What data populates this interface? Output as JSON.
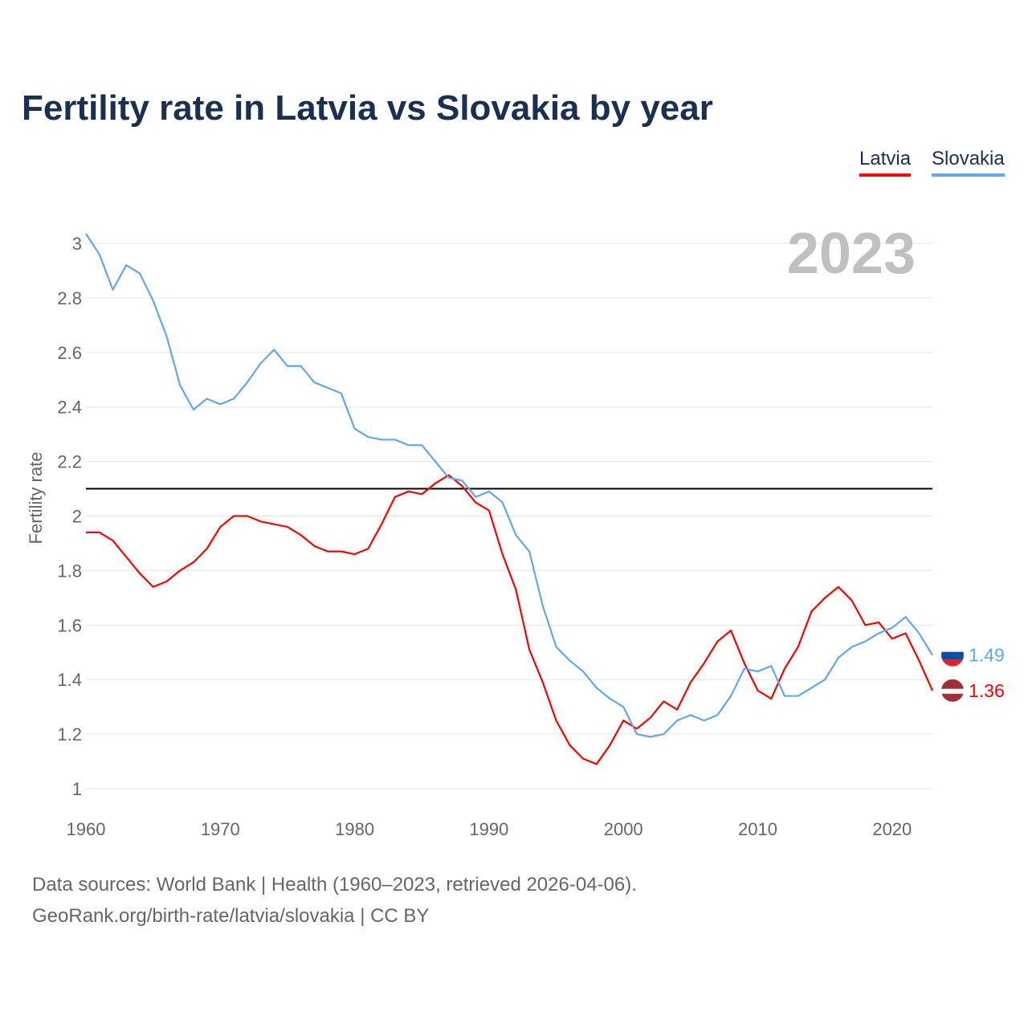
{
  "chart_data": {
    "type": "line",
    "title": "Fertility rate in Latvia vs Slovakia by year",
    "xlabel": "",
    "ylabel": "Fertility rate",
    "xlim": [
      1960,
      2023
    ],
    "ylim": [
      1,
      3
    ],
    "x_ticks": [
      1960,
      1970,
      1980,
      1990,
      2000,
      2010,
      2020
    ],
    "y_ticks": [
      1,
      1.2,
      1.4,
      1.6,
      1.8,
      2,
      2.2,
      2.4,
      2.6,
      2.8,
      3
    ],
    "y_tick_labels": [
      "1",
      "1.2",
      "1.4",
      "1.6",
      "1.8",
      "2",
      "2.2",
      "2.4",
      "2.6",
      "2.8",
      "3"
    ],
    "grid": true,
    "legend_position": "top-right",
    "year_label": "2023",
    "reference_line": 2.1,
    "x": [
      1960,
      1961,
      1962,
      1963,
      1964,
      1965,
      1966,
      1967,
      1968,
      1969,
      1970,
      1971,
      1972,
      1973,
      1974,
      1975,
      1976,
      1977,
      1978,
      1979,
      1980,
      1981,
      1982,
      1983,
      1984,
      1985,
      1986,
      1987,
      1988,
      1989,
      1990,
      1991,
      1992,
      1993,
      1994,
      1995,
      1996,
      1997,
      1998,
      1999,
      2000,
      2001,
      2002,
      2003,
      2004,
      2005,
      2006,
      2007,
      2008,
      2009,
      2010,
      2011,
      2012,
      2013,
      2014,
      2015,
      2016,
      2017,
      2018,
      2019,
      2020,
      2021,
      2022,
      2023
    ],
    "series": [
      {
        "name": "Latvia",
        "color": "#ff0000",
        "end_label": "1.36",
        "values": [
          1.94,
          1.94,
          1.91,
          1.85,
          1.79,
          1.74,
          1.76,
          1.8,
          1.83,
          1.88,
          1.96,
          2.0,
          2.0,
          1.98,
          1.97,
          1.96,
          1.93,
          1.89,
          1.87,
          1.87,
          1.86,
          1.88,
          1.97,
          2.07,
          2.09,
          2.08,
          2.12,
          2.15,
          2.11,
          2.05,
          2.02,
          1.86,
          1.73,
          1.51,
          1.39,
          1.25,
          1.16,
          1.11,
          1.09,
          1.16,
          1.25,
          1.22,
          1.26,
          1.32,
          1.29,
          1.39,
          1.46,
          1.54,
          1.58,
          1.46,
          1.36,
          1.33,
          1.44,
          1.52,
          1.65,
          1.7,
          1.74,
          1.69,
          1.6,
          1.61,
          1.55,
          1.57,
          1.47,
          1.36
        ]
      },
      {
        "name": "Slovakia",
        "color": "#62a8ea",
        "end_label": "1.49",
        "values": [
          3.035,
          2.96,
          2.83,
          2.92,
          2.89,
          2.79,
          2.66,
          2.48,
          2.39,
          2.43,
          2.41,
          2.43,
          2.49,
          2.56,
          2.61,
          2.55,
          2.55,
          2.49,
          2.47,
          2.45,
          2.32,
          2.29,
          2.28,
          2.28,
          2.26,
          2.26,
          2.2,
          2.14,
          2.13,
          2.07,
          2.09,
          2.05,
          1.93,
          1.87,
          1.67,
          1.52,
          1.47,
          1.43,
          1.37,
          1.33,
          1.3,
          1.2,
          1.19,
          1.2,
          1.25,
          1.27,
          1.25,
          1.27,
          1.34,
          1.44,
          1.43,
          1.45,
          1.34,
          1.34,
          1.37,
          1.4,
          1.48,
          1.52,
          1.54,
          1.57,
          1.59,
          1.63,
          1.57,
          1.49
        ]
      }
    ]
  },
  "footer": {
    "line1": "Data sources: World Bank | Health (1960–2023, retrieved 2026-04-06).",
    "line2": "GeoRank.org/birth-rate/latvia/slovakia | CC BY"
  }
}
